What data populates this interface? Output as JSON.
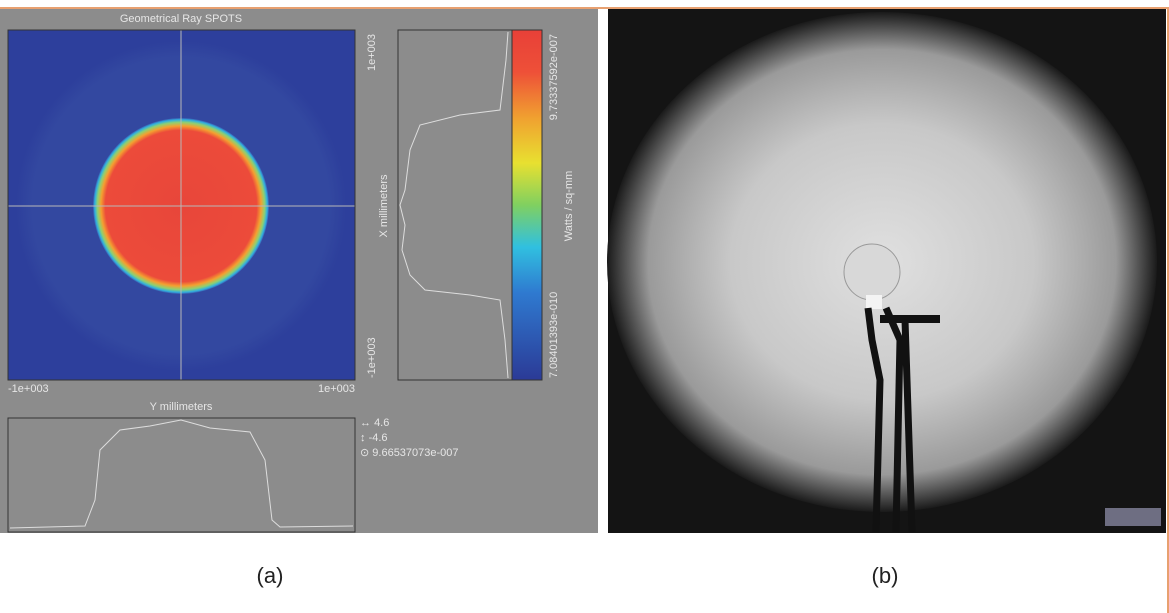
{
  "panel_a": {
    "title": "Geometrical Ray SPOTS",
    "heatmap": {
      "y_axis_min": "-1e+003",
      "y_axis_max": "1e+003",
      "y_axis_label": "Y millimeters",
      "x_axis_max": "1e+003",
      "x_axis_min": "-1e+003",
      "x_axis_label": "X millimeters"
    },
    "colorbar": {
      "max": "9.73337592e-007",
      "min": "7.08401393e-010",
      "unit": "Watts / sq-mm"
    },
    "stats": {
      "horizontal": "4.6",
      "vertical": "-4.6",
      "peak": "9.66537073e-007"
    },
    "caption": "(a)"
  },
  "panel_b": {
    "caption": "(b)"
  }
}
